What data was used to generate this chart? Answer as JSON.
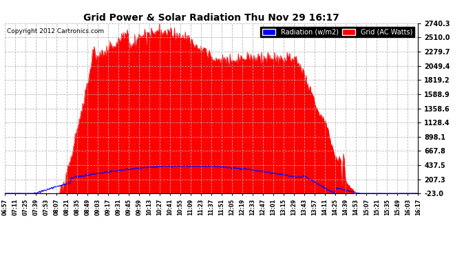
{
  "title": "Grid Power & Solar Radiation Thu Nov 29 16:17",
  "copyright": "Copyright 2012 Cartronics.com",
  "background_color": "#ffffff",
  "plot_bg_color": "#ffffff",
  "grid_color": "#b0b0b0",
  "yticks": [
    -23.0,
    207.3,
    437.5,
    667.8,
    898.1,
    1128.4,
    1358.6,
    1588.9,
    1819.2,
    2049.4,
    2279.7,
    2510.0,
    2740.3
  ],
  "ymin": -23.0,
  "ymax": 2740.3,
  "legend_radiation_label": "Radiation (w/m2)",
  "legend_grid_label": "Grid (AC Watts)",
  "radiation_color": "#0000ff",
  "grid_fill_color": "#ff0000",
  "xtick_labels": [
    "06:57",
    "07:11",
    "07:25",
    "07:39",
    "07:53",
    "08:07",
    "08:21",
    "08:35",
    "08:49",
    "09:03",
    "09:17",
    "09:31",
    "09:45",
    "09:59",
    "10:13",
    "10:27",
    "10:41",
    "10:55",
    "11:09",
    "11:23",
    "11:37",
    "11:51",
    "12:05",
    "12:19",
    "12:33",
    "12:47",
    "13:01",
    "13:15",
    "13:29",
    "13:43",
    "13:57",
    "14:11",
    "14:25",
    "14:39",
    "14:53",
    "15:07",
    "15:21",
    "15:35",
    "15:49",
    "16:03",
    "16:17"
  ],
  "num_points": 500,
  "seed": 77
}
